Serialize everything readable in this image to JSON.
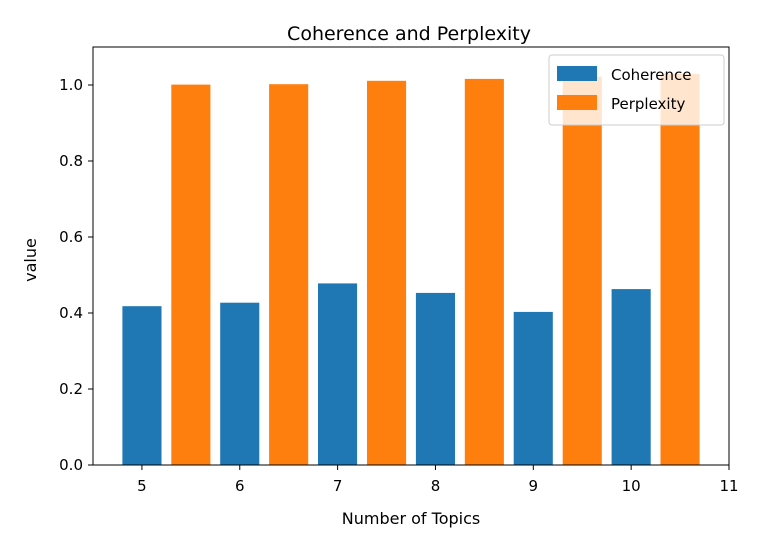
{
  "chart_data": {
    "type": "bar",
    "title": "Coherence and Perplexity",
    "xlabel": "Number of Topics",
    "ylabel": "value",
    "x_ticks": [
      5,
      6,
      7,
      8,
      9,
      10,
      11
    ],
    "y_ticks": [
      0.0,
      0.2,
      0.4,
      0.6,
      0.8,
      1.0
    ],
    "y_tick_labels": [
      "0.0",
      "0.2",
      "0.4",
      "0.6",
      "0.8",
      "1.0"
    ],
    "xlim": [
      4.5,
      11.0
    ],
    "ylim": [
      0.0,
      1.1
    ],
    "bar_width": 0.4,
    "legend_position": "top-right",
    "grid": false,
    "series": [
      {
        "name": "Coherence",
        "color": "#1f77b4",
        "x": [
          5,
          6,
          7,
          8,
          9,
          10
        ],
        "values": [
          0.418,
          0.427,
          0.478,
          0.453,
          0.403,
          0.463
        ]
      },
      {
        "name": "Perplexity",
        "color": "#ff7f0e",
        "x": [
          5.5,
          6.5,
          7.5,
          8.5,
          9.5,
          10.5
        ],
        "values": [
          1.001,
          1.002,
          1.011,
          1.016,
          1.022,
          1.029
        ]
      }
    ]
  }
}
